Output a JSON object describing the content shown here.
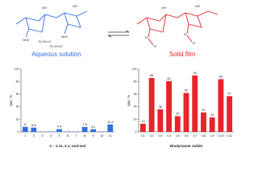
{
  "scheme": {
    "left_label": "Aqueous solution",
    "right_label": "Solid film",
    "left_groups": [
      "OH",
      "HO",
      "NH2",
      "NH2",
      "R-CH=O",
      "R-CH=O"
    ],
    "right_groups": [
      "OH",
      "HO",
      "N",
      "N",
      "R",
      "R"
    ]
  },
  "chart_data": [
    {
      "type": "bar",
      "title": null,
      "x_label": "C : 1-11, 2:1, mol:mol",
      "y_label": "ηns, %",
      "categories": [
        "1",
        "2",
        "3",
        "4",
        "5",
        "6",
        "7",
        "8",
        "9",
        "10",
        "11"
      ],
      "values": [
        8,
        6.8,
        0.6,
        0.6,
        4.4,
        0.6,
        0.6,
        7.8,
        4.2,
        0.6,
        11.9
      ],
      "value_labels": [
        "8",
        "6.8",
        null,
        null,
        "4.4",
        null,
        null,
        "7.8",
        "4.2",
        null,
        "11.9"
      ],
      "color": "#2f6fe0",
      "ylim": [
        0,
        100
      ],
      "yticks": [
        0,
        20,
        40,
        60,
        80,
        100
      ]
    },
    {
      "type": "bar",
      "title": null,
      "x_label": "Biodynamer solids",
      "y_label": "ηns, %",
      "categories": [
        "C1",
        "C2",
        "C3",
        "C4",
        "C5",
        "C6",
        "C7",
        "C8",
        "C9",
        "C10",
        "C11"
      ],
      "values": [
        13,
        86,
        36,
        81,
        25,
        62,
        90,
        31,
        23,
        84,
        57
      ],
      "value_labels": [
        "13",
        "86",
        "36",
        "81",
        "25",
        "62",
        "90",
        "31",
        "23",
        "84",
        "57"
      ],
      "color": "#e8232a",
      "ylim": [
        0,
        100
      ],
      "yticks": [
        0,
        20,
        40,
        60,
        80,
        100
      ]
    }
  ]
}
